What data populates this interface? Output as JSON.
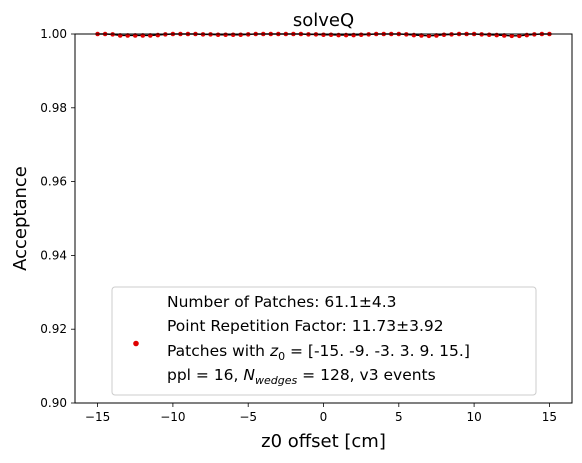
{
  "chart_data": {
    "type": "scatter",
    "title": "solveQ",
    "xlabel": "z0 offset [cm]",
    "ylabel": "Acceptance",
    "xlim": [
      -16.5,
      16.5
    ],
    "ylim": [
      0.9,
      1.0
    ],
    "xticks": [
      -15,
      -10,
      -5,
      0,
      5,
      10,
      15
    ],
    "xtick_labels": [
      "−15",
      "−10",
      "−5",
      "0",
      "5",
      "10",
      "15"
    ],
    "yticks": [
      0.9,
      0.92,
      0.94,
      0.96,
      0.98,
      1.0
    ],
    "ytick_labels": [
      "0.90",
      "0.92",
      "0.94",
      "0.96",
      "0.98",
      "1.00"
    ],
    "series": [
      {
        "name": "acceptance",
        "color": "#e00000",
        "error_color": "#000000",
        "x": [
          -15,
          -14.5,
          -14,
          -13.5,
          -13,
          -12.5,
          -12,
          -11.5,
          -11,
          -10.5,
          -10,
          -9.5,
          -9,
          -8.5,
          -8,
          -7.5,
          -7,
          -6.5,
          -6,
          -5.5,
          -5,
          -4.5,
          -4,
          -3.5,
          -3,
          -2.5,
          -2,
          -1.5,
          -1,
          -0.5,
          0,
          0.5,
          1,
          1.5,
          2,
          2.5,
          3,
          3.5,
          4,
          4.5,
          5,
          5.5,
          6,
          6.5,
          7,
          7.5,
          8,
          8.5,
          9,
          9.5,
          10,
          10.5,
          11,
          11.5,
          12,
          12.5,
          13,
          13.5,
          14,
          14.5,
          15
        ],
        "y": [
          1.0,
          1.0,
          0.9999,
          0.9996,
          0.9996,
          0.9996,
          0.9996,
          0.9996,
          0.9997,
          0.9999,
          1.0,
          1.0,
          1.0,
          1.0,
          0.9999,
          0.9999,
          0.9998,
          0.9998,
          0.9998,
          0.9998,
          0.9999,
          1.0,
          1.0,
          1.0,
          1.0,
          1.0,
          1.0,
          1.0,
          0.9999,
          0.9999,
          0.9998,
          0.9998,
          0.9997,
          0.9997,
          0.9997,
          0.9998,
          0.9999,
          1.0,
          1.0,
          1.0,
          1.0,
          0.9999,
          0.9997,
          0.9996,
          0.9995,
          0.9996,
          0.9998,
          0.9999,
          1.0,
          1.0,
          1.0,
          0.9999,
          0.9998,
          0.9997,
          0.9996,
          0.9995,
          0.9995,
          0.9997,
          0.9999,
          1.0,
          1.0
        ]
      }
    ],
    "legend": {
      "placement": "lower-center",
      "lines": {
        "patches": "Number of Patches: 61.1±4.3",
        "repetition": "Point Repetition Factor: 11.73±3.92",
        "z0_prefix": "Patches with ",
        "z0_symbol": "z",
        "z0_sub": "0",
        "z0_suffix": " = [-15.  -9.  -3.   3.   9.  15.]",
        "ppl_prefix": "ppl = 16, ",
        "ppl_symbol": "N",
        "ppl_sub": "wedges",
        "ppl_suffix": " = 128, v3 events"
      }
    }
  }
}
